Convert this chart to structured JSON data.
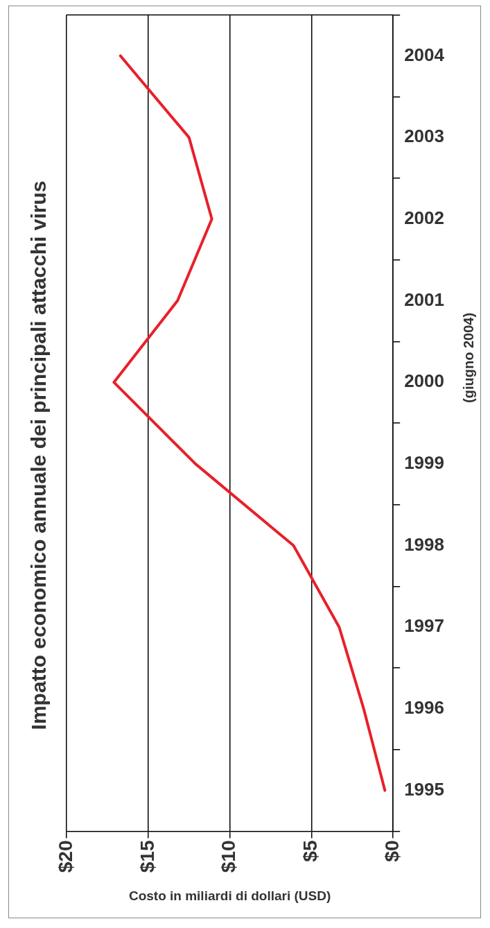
{
  "chart_data": {
    "type": "line",
    "orientation": "horizontal",
    "title": "Impatto economico annuale dei principali attacchi virus",
    "xlabel": "Costo in miliardi di dollari (USD)",
    "categories": [
      "2004",
      "2003",
      "2002",
      "2001",
      "2000",
      "1999",
      "1998",
      "1997",
      "1996",
      "1995"
    ],
    "series": [
      {
        "color": "#e8202a",
        "values": [
          16.7,
          12.5,
          11.1,
          13.2,
          17.1,
          12.1,
          6.1,
          3.3,
          1.8,
          0.5
        ]
      }
    ],
    "xlim": [
      20,
      0
    ],
    "xticks": [
      {
        "value": 20,
        "label": "$20"
      },
      {
        "value": 15,
        "label": "$15"
      },
      {
        "value": 10,
        "label": "$10"
      },
      {
        "value": 5,
        "label": "$5"
      },
      {
        "value": 0,
        "label": "$0"
      }
    ],
    "grid": "x",
    "legend": false,
    "marker": "none",
    "line_style": "solid",
    "annotations": [
      "(giugno 2004)"
    ]
  }
}
